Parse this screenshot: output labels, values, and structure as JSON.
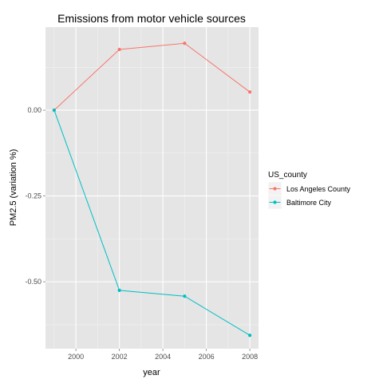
{
  "chart_data": {
    "type": "line",
    "title": "Emissions from motor vehicle sources",
    "xlabel": "year",
    "ylabel": "PM2.5 (variation %)",
    "x": [
      1999,
      2002,
      2005,
      2008
    ],
    "xlim": [
      1998.6,
      2008.4
    ],
    "ylim": [
      -0.695,
      0.242
    ],
    "xticks": [
      2000,
      2002,
      2004,
      2006,
      2008
    ],
    "yticks": [
      0,
      -0.25,
      -0.5
    ],
    "ytick_labels": [
      "0.00",
      "-0.25",
      "-0.50"
    ],
    "grid": true,
    "legend": {
      "title": "US_county",
      "position": "right"
    },
    "series": [
      {
        "name": "Los Angeles County",
        "color": "#f8766d",
        "values": [
          0.0,
          0.177,
          0.195,
          0.053
        ]
      },
      {
        "name": "Baltimore City",
        "color": "#00bfc4",
        "values": [
          0.0,
          -0.525,
          -0.542,
          -0.656
        ]
      }
    ]
  }
}
